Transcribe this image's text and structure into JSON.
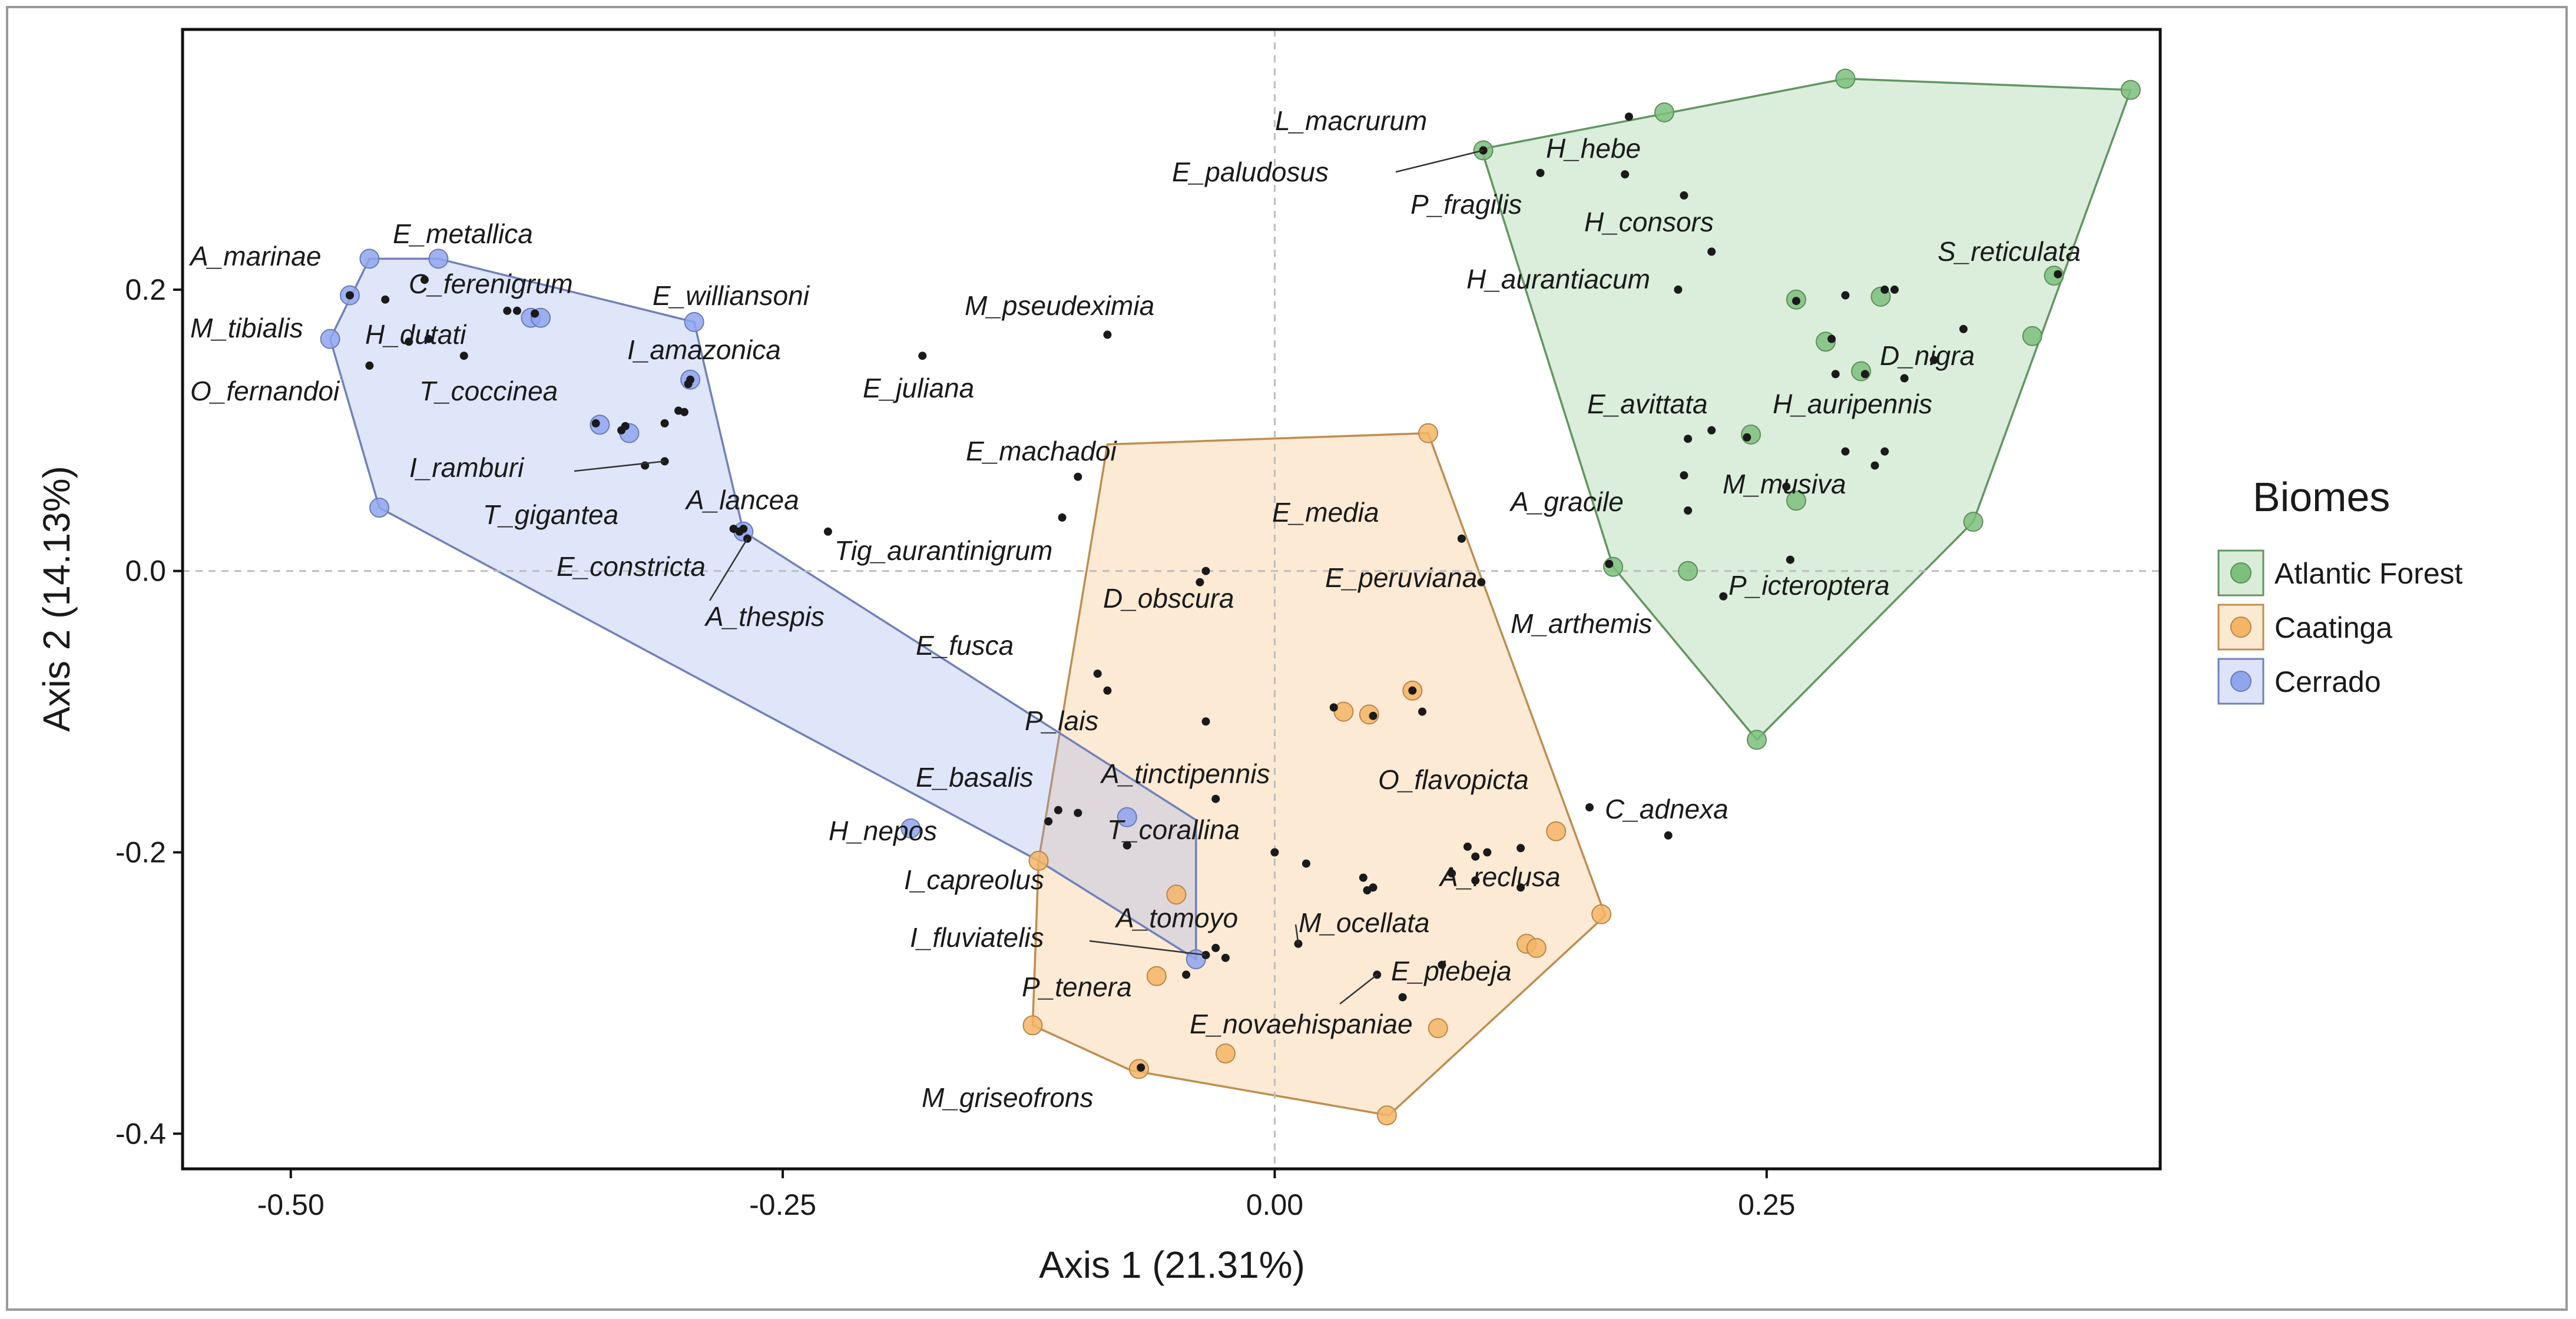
{
  "chart_data": {
    "type": "scatter",
    "xlabel": "Axis 1 (21.31%)",
    "ylabel": "Axis 2 (14.13%)",
    "xlim": [
      -0.555,
      0.45
    ],
    "ylim": [
      -0.425,
      0.385
    ],
    "x_ticks": [
      -0.5,
      -0.25,
      0.0,
      0.25
    ],
    "x_tick_labels": [
      "-0.50",
      "-0.25",
      "0.00",
      "0.25"
    ],
    "y_ticks": [
      -0.4,
      -0.2,
      0.0,
      0.2
    ],
    "y_tick_labels": [
      "-0.4",
      "-0.2",
      "0.0",
      "0.2"
    ],
    "reference_lines": [
      {
        "axis": "x",
        "value": 0.0,
        "style": "dashed"
      },
      {
        "axis": "y",
        "value": 0.0,
        "style": "dashed"
      }
    ],
    "grid": false,
    "legend": {
      "title": "Biomes",
      "placement": "right",
      "entries": [
        "Atlantic Forest",
        "Caatinga",
        "Cerrado"
      ]
    },
    "colors": {
      "Atlantic Forest": "#7dbf7d",
      "Caatinga": "#f5b566",
      "Cerrado": "#8fa5ee",
      "point": "#1a1a1a"
    },
    "hulls": [
      {
        "name": "Atlantic Forest",
        "points": [
          [
            0.105,
            0.3
          ],
          [
            0.29,
            0.35
          ],
          [
            0.435,
            0.342
          ],
          [
            0.355,
            0.035
          ],
          [
            0.245,
            -0.12
          ],
          [
            0.172,
            0.003
          ]
        ]
      },
      {
        "name": "Caatinga",
        "points": [
          [
            -0.085,
            0.09
          ],
          [
            0.078,
            0.098
          ],
          [
            0.168,
            -0.245
          ],
          [
            0.058,
            -0.387
          ],
          [
            -0.073,
            -0.355
          ],
          [
            -0.123,
            -0.323
          ],
          [
            -0.12,
            -0.206
          ]
        ]
      },
      {
        "name": "Cerrado",
        "points": [
          [
            -0.46,
            0.222
          ],
          [
            -0.425,
            0.222
          ],
          [
            -0.295,
            0.177
          ],
          [
            -0.27,
            0.028
          ],
          [
            -0.04,
            -0.177
          ],
          [
            -0.04,
            -0.276
          ],
          [
            -0.12,
            -0.206
          ],
          [
            -0.455,
            0.045
          ],
          [
            -0.48,
            0.165
          ]
        ]
      }
    ],
    "biome_points": [
      {
        "biome": "Atlantic Forest",
        "points": [
          [
            0.106,
            0.299
          ],
          [
            0.198,
            0.326
          ],
          [
            0.29,
            0.35
          ],
          [
            0.435,
            0.342
          ],
          [
            0.396,
            0.21
          ],
          [
            0.385,
            0.167
          ],
          [
            0.265,
            0.193
          ],
          [
            0.308,
            0.195
          ],
          [
            0.28,
            0.163
          ],
          [
            0.298,
            0.142
          ],
          [
            0.242,
            0.097
          ],
          [
            0.265,
            0.05
          ],
          [
            0.355,
            0.035
          ],
          [
            0.172,
            0.003
          ],
          [
            0.21,
            0.0
          ],
          [
            0.245,
            -0.12
          ]
        ]
      },
      {
        "biome": "Caatinga",
        "points": [
          [
            0.078,
            0.098
          ],
          [
            0.035,
            -0.1
          ],
          [
            0.048,
            -0.102
          ],
          [
            0.07,
            -0.085
          ],
          [
            0.143,
            -0.185
          ],
          [
            0.166,
            -0.244
          ],
          [
            0.128,
            -0.265
          ],
          [
            0.133,
            -0.268
          ],
          [
            0.057,
            -0.387
          ],
          [
            -0.069,
            -0.354
          ],
          [
            -0.123,
            -0.323
          ],
          [
            -0.12,
            -0.206
          ],
          [
            -0.05,
            -0.23
          ],
          [
            -0.06,
            -0.288
          ],
          [
            -0.025,
            -0.343
          ],
          [
            0.083,
            -0.325
          ]
        ]
      },
      {
        "biome": "Cerrado",
        "points": [
          [
            -0.46,
            0.222
          ],
          [
            -0.425,
            0.222
          ],
          [
            -0.47,
            0.196
          ],
          [
            -0.378,
            0.18
          ],
          [
            -0.373,
            0.18
          ],
          [
            -0.295,
            0.177
          ],
          [
            -0.297,
            0.136
          ],
          [
            -0.343,
            0.104
          ],
          [
            -0.328,
            0.098
          ],
          [
            -0.27,
            0.028
          ],
          [
            -0.455,
            0.045
          ],
          [
            -0.48,
            0.165
          ],
          [
            -0.075,
            -0.175
          ],
          [
            -0.04,
            -0.276
          ],
          [
            -0.185,
            -0.183
          ]
        ]
      }
    ],
    "species": [
      {
        "name": "L_macrurum",
        "x": 0.106,
        "y": 0.299
      },
      {
        "name": "E_paludosus",
        "x": 0.106,
        "y": 0.299
      },
      {
        "name": "P_fragilis",
        "x": 0.135,
        "y": 0.283
      },
      {
        "name": "H_hebe",
        "x": 0.178,
        "y": 0.282
      },
      {
        "name": "H_consors",
        "x": 0.208,
        "y": 0.267
      },
      {
        "name": "H_aurantiacum",
        "x": 0.222,
        "y": 0.227
      },
      {
        "name": "S_reticulata",
        "x": 0.398,
        "y": 0.211
      },
      {
        "name": "D_nigra",
        "x": 0.35,
        "y": 0.172
      },
      {
        "name": "E_avittata",
        "x": 0.21,
        "y": 0.094
      },
      {
        "name": "H_auripennis",
        "x": 0.3,
        "y": 0.14
      },
      {
        "name": "A_gracile",
        "x": 0.21,
        "y": 0.043
      },
      {
        "name": "M_musiva",
        "x": 0.29,
        "y": 0.085
      },
      {
        "name": "P_icteroptera",
        "x": 0.262,
        "y": 0.008
      },
      {
        "name": "M_arthemis",
        "x": 0.228,
        "y": -0.018
      },
      {
        "name": "A_marinae",
        "x": -0.47,
        "y": 0.196
      },
      {
        "name": "E_metallica",
        "x": -0.432,
        "y": 0.207
      },
      {
        "name": "C_ferenigrum",
        "x": -0.385,
        "y": 0.185
      },
      {
        "name": "M_tibialis",
        "x": -0.44,
        "y": 0.163
      },
      {
        "name": "H_dutati",
        "x": -0.412,
        "y": 0.153
      },
      {
        "name": "O_fernandoi",
        "x": -0.46,
        "y": 0.146
      },
      {
        "name": "T_coccinea",
        "x": -0.33,
        "y": 0.103
      },
      {
        "name": "E_williansoni",
        "x": -0.297,
        "y": 0.136
      },
      {
        "name": "I_amazonica",
        "x": -0.3,
        "y": 0.113
      },
      {
        "name": "E_juliana",
        "x": -0.179,
        "y": 0.153
      },
      {
        "name": "I_ramburi",
        "x": -0.31,
        "y": 0.078
      },
      {
        "name": "T_gigantea",
        "x": -0.272,
        "y": 0.028
      },
      {
        "name": "A_lancea",
        "x": -0.227,
        "y": 0.028
      },
      {
        "name": "E_constricta",
        "x": -0.27,
        "y": 0.03
      },
      {
        "name": "A_thespis",
        "x": -0.268,
        "y": 0.023
      },
      {
        "name": "M_pseudeximia",
        "x": -0.085,
        "y": 0.168
      },
      {
        "name": "E_machadoi",
        "x": -0.1,
        "y": 0.067
      },
      {
        "name": "E_media",
        "x": 0.095,
        "y": 0.023
      },
      {
        "name": "Tig_aurantinigrum",
        "x": -0.035,
        "y": 0.0
      },
      {
        "name": "E_peruviana",
        "x": 0.105,
        "y": -0.008
      },
      {
        "name": "D_obscura",
        "x": -0.038,
        "y": -0.008
      },
      {
        "name": "E_fusca",
        "x": -0.09,
        "y": -0.073
      },
      {
        "name": "P_lais",
        "x": -0.035,
        "y": -0.107
      },
      {
        "name": "E_basalis",
        "x": -0.1,
        "y": -0.172
      },
      {
        "name": "A_tinctipennis",
        "x": -0.03,
        "y": -0.162
      },
      {
        "name": "O_flavopicta",
        "x": 0.16,
        "y": -0.168
      },
      {
        "name": "C_adnexa",
        "x": 0.2,
        "y": -0.188
      },
      {
        "name": "H_nepos",
        "x": -0.115,
        "y": -0.178
      },
      {
        "name": "T_corallina",
        "x": 0.0,
        "y": -0.2
      },
      {
        "name": "A_reclusa",
        "x": 0.125,
        "y": -0.225
      },
      {
        "name": "I_capreolus",
        "x": -0.075,
        "y": -0.195
      },
      {
        "name": "A_tomoyo",
        "x": 0.05,
        "y": -0.225
      },
      {
        "name": "M_ocellata",
        "x": 0.012,
        "y": -0.265
      },
      {
        "name": "I_fluviatelis",
        "x": -0.035,
        "y": -0.273
      },
      {
        "name": "E_plebeja",
        "x": 0.085,
        "y": -0.28
      },
      {
        "name": "P_tenera",
        "x": -0.045,
        "y": -0.287
      },
      {
        "name": "E_novaehispaniae",
        "x": 0.052,
        "y": -0.287
      },
      {
        "name": "M_griseofrons",
        "x": -0.068,
        "y": -0.353
      }
    ],
    "other_points": [
      [
        0.18,
        0.323
      ],
      [
        0.205,
        0.2
      ],
      [
        0.265,
        0.192
      ],
      [
        0.29,
        0.196
      ],
      [
        0.31,
        0.2
      ],
      [
        0.315,
        0.2
      ],
      [
        0.283,
        0.165
      ],
      [
        0.285,
        0.14
      ],
      [
        0.335,
        0.15
      ],
      [
        0.32,
        0.137
      ],
      [
        0.222,
        0.1
      ],
      [
        0.24,
        0.095
      ],
      [
        0.31,
        0.085
      ],
      [
        0.26,
        0.06
      ],
      [
        0.208,
        0.068
      ],
      [
        0.17,
        0.005
      ],
      [
        0.305,
        0.075
      ],
      [
        -0.452,
        0.193
      ],
      [
        -0.39,
        0.185
      ],
      [
        -0.376,
        0.183
      ],
      [
        -0.43,
        0.165
      ],
      [
        -0.298,
        0.133
      ],
      [
        -0.303,
        0.114
      ],
      [
        -0.31,
        0.105
      ],
      [
        -0.345,
        0.105
      ],
      [
        -0.332,
        0.1
      ],
      [
        -0.32,
        0.075
      ],
      [
        -0.275,
        0.03
      ],
      [
        -0.108,
        0.038
      ],
      [
        -0.085,
        -0.085
      ],
      [
        0.03,
        -0.097
      ],
      [
        0.05,
        -0.103
      ],
      [
        0.07,
        -0.085
      ],
      [
        0.075,
        -0.1
      ],
      [
        -0.11,
        -0.17
      ],
      [
        -0.075,
        -0.195
      ],
      [
        0.016,
        -0.208
      ],
      [
        0.045,
        -0.218
      ],
      [
        0.047,
        -0.227
      ],
      [
        0.098,
        -0.196
      ],
      [
        0.102,
        -0.203
      ],
      [
        0.102,
        -0.22
      ],
      [
        0.108,
        -0.2
      ],
      [
        0.125,
        -0.197
      ],
      [
        0.09,
        -0.215
      ],
      [
        -0.025,
        -0.275
      ],
      [
        -0.03,
        -0.268
      ],
      [
        0.065,
        -0.303
      ]
    ]
  }
}
